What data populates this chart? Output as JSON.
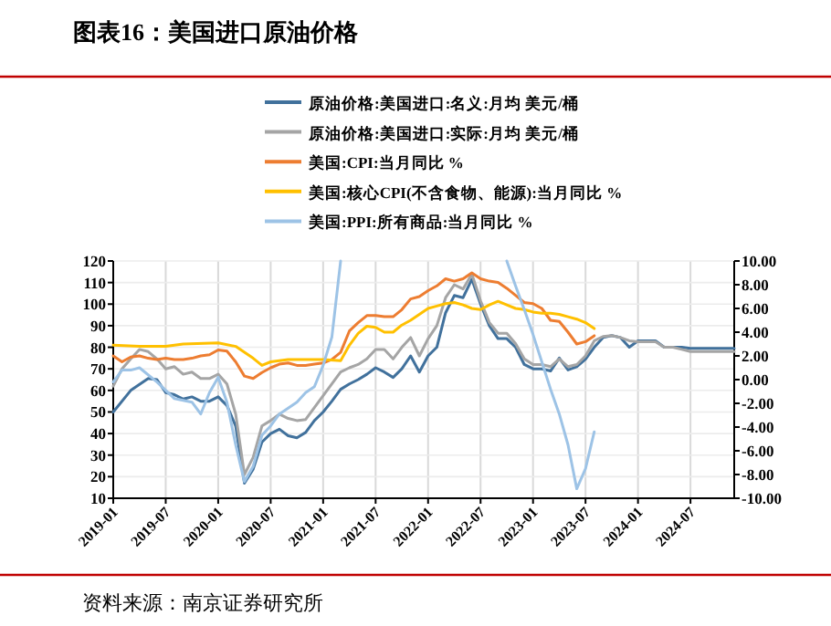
{
  "chart_data": {
    "type": "line",
    "title": "图表16：美国进口原油价格",
    "annotations": [
      "资料来源：南京证券研究所"
    ],
    "xlim": [
      "2019-01",
      "2024-12"
    ],
    "xticks": [
      "2019-01",
      "2019-07",
      "2020-01",
      "2020-07",
      "2021-01",
      "2021-07",
      "2022-01",
      "2022-07",
      "2023-01",
      "2023-07",
      "2024-01",
      "2024-07"
    ],
    "ylim": [
      10,
      120
    ],
    "yticks": [
      10,
      20,
      30,
      40,
      50,
      60,
      70,
      80,
      90,
      100,
      110,
      120
    ],
    "y2lim": [
      -10,
      10
    ],
    "y2ticks": [
      {
        "value": -10,
        "label": "-10.00"
      },
      {
        "value": -8,
        "label": "-8.00"
      },
      {
        "value": -6,
        "label": "-6.00"
      },
      {
        "value": -4,
        "label": "-4.00"
      },
      {
        "value": -2,
        "label": "-2.00"
      },
      {
        "value": 0,
        "label": "0.00"
      },
      {
        "value": 2,
        "label": "2.00"
      },
      {
        "value": 4,
        "label": "4.00"
      },
      {
        "value": 6,
        "label": "6.00"
      },
      {
        "value": 8,
        "label": "8.00"
      },
      {
        "value": 10,
        "label": "10.00"
      }
    ],
    "grid": true,
    "legend": "top",
    "series": [
      {
        "name": "原油价格:美国进口:名义:月均 美元/桶",
        "color": "#41719c",
        "axis": "y",
        "x": [
          "2019-01",
          "2019-03",
          "2019-05",
          "2019-06",
          "2019-07",
          "2019-08",
          "2019-09",
          "2019-10",
          "2019-11",
          "2019-12",
          "2020-01",
          "2020-02",
          "2020-03",
          "2020-04",
          "2020-05",
          "2020-06",
          "2020-07",
          "2020-08",
          "2020-09",
          "2020-10",
          "2020-11",
          "2020-12",
          "2021-01",
          "2021-02",
          "2021-03",
          "2021-04",
          "2021-05",
          "2021-06",
          "2021-07",
          "2021-08",
          "2021-09",
          "2021-10",
          "2021-11",
          "2021-12",
          "2022-01",
          "2022-02",
          "2022-03",
          "2022-04",
          "2022-05",
          "2022-06",
          "2022-07",
          "2022-08",
          "2022-09",
          "2022-10",
          "2022-11",
          "2022-12",
          "2023-01",
          "2023-02",
          "2023-03",
          "2023-04",
          "2023-05",
          "2023-06",
          "2023-07",
          "2023-08",
          "2023-09",
          "2023-10",
          "2023-11",
          "2023-12",
          "2024-01",
          "2024-02",
          "2024-03",
          "2024-04",
          "2024-05",
          "2024-06",
          "2024-07",
          "2024-12"
        ],
        "values": [
          50,
          60,
          65.5,
          65,
          59,
          58,
          56,
          57,
          55,
          55,
          57,
          53,
          43.5,
          17,
          23.5,
          36,
          40,
          42,
          39,
          38,
          40.5,
          46,
          50,
          55,
          60.5,
          63,
          65,
          67.5,
          70.5,
          68.5,
          66,
          70,
          76,
          68.5,
          76,
          80,
          96,
          104,
          103,
          111.5,
          100,
          90,
          84,
          84,
          80,
          72,
          70,
          70,
          69,
          75,
          69.5,
          71,
          74.5,
          80,
          84.5,
          85.4,
          84.5,
          80,
          83,
          83,
          83,
          80,
          80,
          80,
          79.5,
          79.5
        ]
      },
      {
        "name": "原油价格:美国进口:实际:月均 美元/桶",
        "color": "#a5a5a5",
        "axis": "y",
        "x": [
          "2019-01",
          "2019-02",
          "2019-03",
          "2019-04",
          "2019-05",
          "2019-06",
          "2019-07",
          "2019-08",
          "2019-09",
          "2019-10",
          "2019-11",
          "2019-12",
          "2020-01",
          "2020-02",
          "2020-03",
          "2020-04",
          "2020-05",
          "2020-06",
          "2020-07",
          "2020-08",
          "2020-09",
          "2020-10",
          "2020-11",
          "2020-12",
          "2021-01",
          "2021-02",
          "2021-03",
          "2021-04",
          "2021-05",
          "2021-06",
          "2021-07",
          "2021-08",
          "2021-09",
          "2021-10",
          "2021-11",
          "2021-12",
          "2022-01",
          "2022-02",
          "2022-03",
          "2022-04",
          "2022-05",
          "2022-06",
          "2022-07",
          "2022-08",
          "2022-09",
          "2022-10",
          "2022-11",
          "2022-12",
          "2023-01",
          "2023-02",
          "2023-03",
          "2023-04",
          "2023-05",
          "2023-06",
          "2023-07",
          "2023-08",
          "2023-09",
          "2023-10",
          "2023-11",
          "2023-12",
          "2024-01",
          "2024-02",
          "2024-03",
          "2024-04",
          "2024-05",
          "2024-06",
          "2024-07",
          "2024-12"
        ],
        "values": [
          62,
          70,
          74.6,
          79,
          78,
          74.6,
          70,
          71,
          67.5,
          68.5,
          65.5,
          65.5,
          67.5,
          63,
          49,
          21,
          29,
          43.5,
          46,
          49,
          47,
          46,
          46.5,
          52,
          57.5,
          63,
          68.5,
          70.5,
          72,
          74.6,
          79,
          79,
          74.6,
          80,
          84.5,
          76,
          84,
          90,
          103,
          109,
          107,
          114,
          101.5,
          91.5,
          86.5,
          86.5,
          81.7,
          74.6,
          72,
          72,
          71,
          74.6,
          71,
          72,
          76,
          83,
          85,
          85.4,
          84.5,
          83,
          82.6,
          82.6,
          82.6,
          80,
          80,
          79,
          78,
          78
        ]
      },
      {
        "name": "美国:CPI:当月同比 %",
        "color": "#ed7d31",
        "axis": "y2",
        "x": [
          "2019-01",
          "2019-02",
          "2019-03",
          "2019-04",
          "2019-05",
          "2019-06",
          "2019-07",
          "2019-08",
          "2019-09",
          "2019-10",
          "2019-11",
          "2019-12",
          "2020-01",
          "2020-02",
          "2020-03",
          "2020-04",
          "2020-05",
          "2020-06",
          "2020-07",
          "2020-08",
          "2020-09",
          "2020-10",
          "2020-11",
          "2020-12",
          "2021-01",
          "2021-02",
          "2021-03",
          "2021-04",
          "2021-05",
          "2021-06",
          "2021-07",
          "2021-08",
          "2021-09",
          "2021-10",
          "2021-11",
          "2021-12",
          "2022-01",
          "2022-02",
          "2022-03",
          "2022-04",
          "2022-05",
          "2022-06",
          "2022-07",
          "2022-08",
          "2022-09",
          "2022-10",
          "2022-11",
          "2022-12",
          "2023-01",
          "2023-02",
          "2023-03",
          "2023-04",
          "2023-05",
          "2023-06",
          "2023-07",
          "2023-08"
        ],
        "values": [
          2.0,
          1.5,
          1.9,
          2.0,
          1.8,
          1.7,
          1.8,
          1.7,
          1.7,
          1.8,
          2.0,
          2.1,
          2.5,
          2.4,
          1.5,
          0.3,
          0.1,
          0.6,
          1.0,
          1.3,
          1.4,
          1.2,
          1.2,
          1.3,
          1.4,
          1.7,
          2.3,
          4.1,
          4.8,
          5.4,
          5.4,
          5.3,
          5.3,
          5.9,
          6.8,
          7.0,
          7.5,
          7.9,
          8.5,
          8.3,
          8.5,
          9.0,
          8.5,
          8.3,
          8.2,
          7.7,
          7.1,
          6.5,
          6.4,
          6.0,
          5.0,
          4.9,
          4.0,
          3.0,
          3.2,
          3.7
        ]
      },
      {
        "name": "美国:核心CPI(不含食物、能源):当月同比 %",
        "color": "#ffc000",
        "axis": "y2",
        "x": [
          "2019-01",
          "2019-04",
          "2019-07",
          "2019-09",
          "2020-01",
          "2020-03",
          "2020-05",
          "2020-06",
          "2020-07",
          "2020-09",
          "2020-11",
          "2021-01",
          "2021-03",
          "2021-04",
          "2021-05",
          "2021-06",
          "2021-07",
          "2021-08",
          "2021-09",
          "2021-10",
          "2021-11",
          "2021-12",
          "2022-01",
          "2022-02",
          "2022-03",
          "2022-04",
          "2022-05",
          "2022-06",
          "2022-07",
          "2022-08",
          "2022-09",
          "2022-10",
          "2022-11",
          "2022-12",
          "2023-01",
          "2023-02",
          "2023-03",
          "2023-04",
          "2023-05",
          "2023-06",
          "2023-07",
          "2023-08"
        ],
        "values": [
          2.9,
          2.8,
          2.8,
          3.0,
          3.1,
          2.8,
          1.8,
          1.2,
          1.5,
          1.7,
          1.7,
          1.7,
          1.6,
          2.9,
          3.9,
          4.5,
          4.4,
          4.0,
          4.0,
          4.6,
          5.0,
          5.5,
          6.0,
          6.2,
          6.4,
          6.5,
          6.3,
          6.0,
          5.9,
          6.3,
          6.6,
          6.3,
          6.0,
          5.9,
          5.7,
          5.6,
          5.6,
          5.5,
          5.3,
          5.1,
          4.8,
          4.3
        ]
      },
      {
        "name": "美国:PPI:所有商品:当月同比 %",
        "color": "#9dc3e6",
        "axis": "y2",
        "x": [
          "2019-01",
          "2019-02",
          "2019-03",
          "2019-04",
          "2019-06",
          "2019-08",
          "2019-10",
          "2019-11",
          "2019-12",
          "2020-01",
          "2020-02",
          "2020-03",
          "2020-04",
          "2020-05",
          "2020-06",
          "2020-07",
          "2020-08",
          "2020-09",
          "2020-10",
          "2020-11",
          "2020-12",
          "2021-01",
          "2021-02",
          "2021-03"
        ],
        "values": [
          -0.2,
          0.8,
          0.8,
          1.0,
          -0.2,
          -1.6,
          -1.9,
          -2.9,
          -1.1,
          0.2,
          -1.9,
          -5.5,
          -8.6,
          -7.3,
          -4.7,
          -3.9,
          -2.9,
          -2.4,
          -1.9,
          -1.1,
          -0.6,
          1.2,
          3.6,
          10
        ]
      },
      {
        "color": "#9dc3e6",
        "axis": "y2",
        "x": [
          "2022-10",
          "2022-11",
          "2022-12",
          "2023-01",
          "2023-02",
          "2023-03",
          "2023-04",
          "2023-05",
          "2023-06",
          "2023-07",
          "2023-08"
        ],
        "values": [
          10,
          7.9,
          5.9,
          3.8,
          1.5,
          -0.8,
          -2.9,
          -5.5,
          -9.2,
          -7.5,
          -4.4
        ]
      }
    ]
  }
}
